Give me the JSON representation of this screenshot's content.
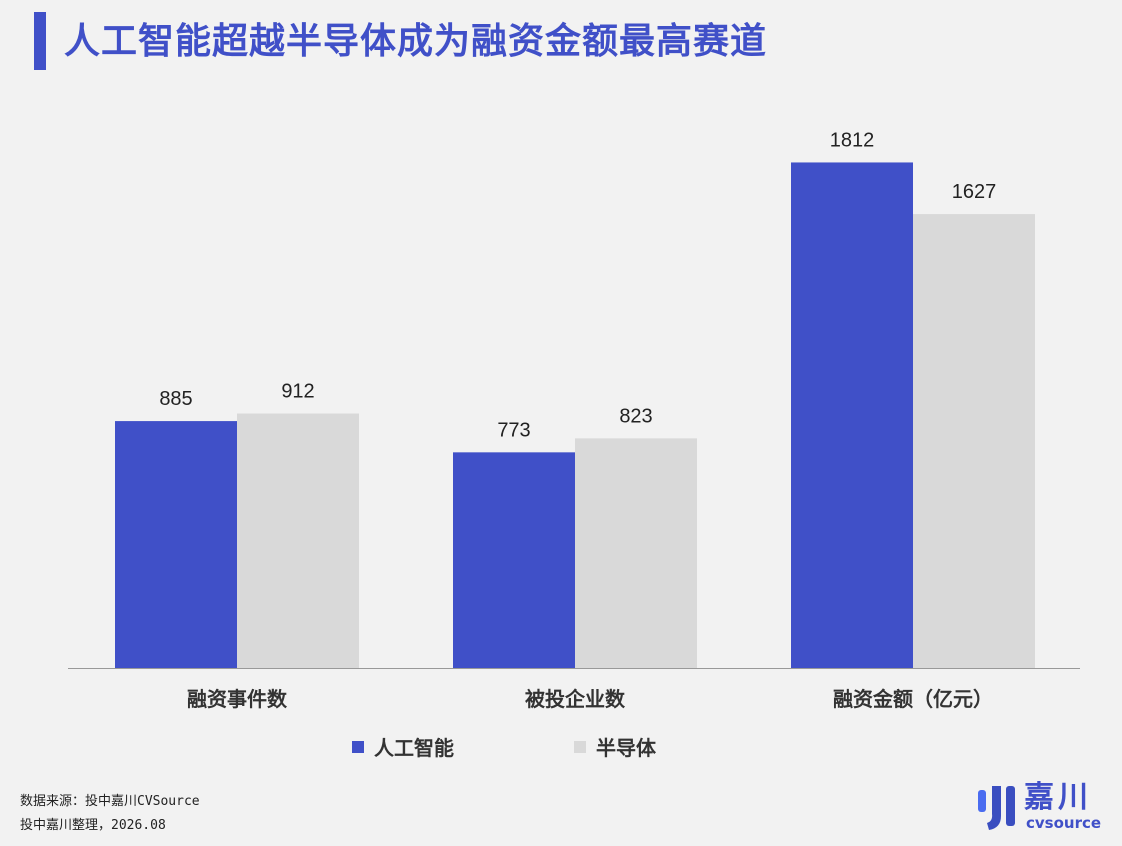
{
  "title": "人工智能超越半导体成为融资金额最高赛道",
  "chart_data": {
    "type": "bar",
    "categories": [
      "融资事件数",
      "被投企业数",
      "融资金额（亿元）"
    ],
    "series": [
      {
        "name": "人工智能",
        "values": [
          885,
          773,
          1812
        ],
        "color": "#4050c8"
      },
      {
        "name": "半导体",
        "values": [
          912,
          823,
          1627
        ],
        "color": "#d9d9d9"
      }
    ],
    "ylim": [
      0,
      2000
    ],
    "grid": false,
    "legend": "bottom"
  },
  "source_lines": [
    "数据来源：投中嘉川CVSource",
    "投中嘉川整理，2026.08"
  ],
  "logo": {
    "cn": "嘉川",
    "en": "cvsource"
  }
}
